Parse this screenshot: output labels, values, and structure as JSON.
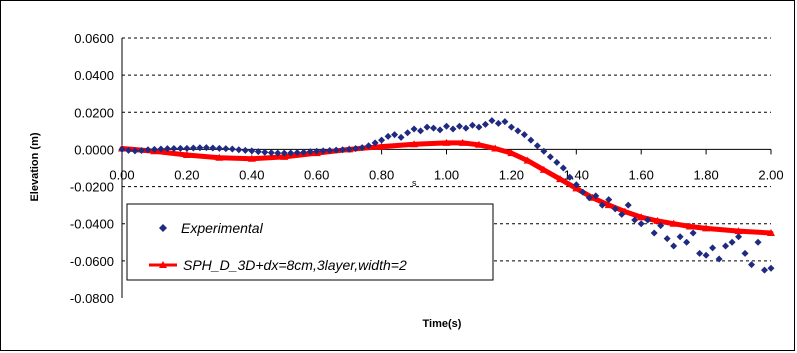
{
  "chart_data": {
    "type": "scatter",
    "title": "",
    "xlabel": "Time(s)",
    "ylabel": "Elevation (m)",
    "xlim": [
      0,
      2
    ],
    "ylim": [
      -0.08,
      0.06
    ],
    "x_ticks": [
      "0.00",
      "0.20",
      "0.40",
      "0.60",
      "0.80",
      "1.00",
      "1.20",
      "1.40",
      "1.60",
      "1.80",
      "2.00"
    ],
    "y_ticks": [
      "0.0600",
      "0.0400",
      "0.0200",
      "0.0000",
      "-0.0200",
      "-0.0400",
      "-0.0600",
      "-0.0800"
    ],
    "grid": "horizontal dashed",
    "legend_position": "bottom-left",
    "stray_mark": "s",
    "series": [
      {
        "name": "Experimental",
        "marker": "diamond",
        "color": "#1f2a80",
        "x": [
          0.0,
          0.02,
          0.04,
          0.06,
          0.08,
          0.1,
          0.12,
          0.14,
          0.16,
          0.18,
          0.2,
          0.22,
          0.24,
          0.26,
          0.28,
          0.3,
          0.32,
          0.34,
          0.36,
          0.38,
          0.4,
          0.42,
          0.44,
          0.46,
          0.48,
          0.5,
          0.52,
          0.54,
          0.56,
          0.58,
          0.6,
          0.62,
          0.64,
          0.66,
          0.68,
          0.7,
          0.72,
          0.74,
          0.76,
          0.78,
          0.8,
          0.82,
          0.84,
          0.86,
          0.88,
          0.9,
          0.92,
          0.94,
          0.96,
          0.98,
          1.0,
          1.02,
          1.04,
          1.06,
          1.08,
          1.1,
          1.12,
          1.14,
          1.16,
          1.18,
          1.2,
          1.22,
          1.24,
          1.26,
          1.28,
          1.3,
          1.32,
          1.34,
          1.36,
          1.38,
          1.4,
          1.42,
          1.44,
          1.46,
          1.48,
          1.5,
          1.52,
          1.54,
          1.56,
          1.58,
          1.6,
          1.62,
          1.64,
          1.66,
          1.68,
          1.7,
          1.72,
          1.74,
          1.76,
          1.78,
          1.8,
          1.82,
          1.84,
          1.86,
          1.88,
          1.9,
          1.92,
          1.94,
          1.96,
          1.98,
          2.0
        ],
        "y": [
          0.0,
          -0.0005,
          -0.0008,
          -0.0006,
          -0.0002,
          0.0,
          0.0002,
          0.0004,
          0.0005,
          0.0006,
          0.0006,
          0.0008,
          0.0009,
          0.001,
          0.0008,
          0.0006,
          0.0004,
          0.0002,
          -0.0002,
          -0.0005,
          -0.0008,
          -0.0012,
          -0.0015,
          -0.0018,
          -0.002,
          -0.002,
          -0.0019,
          -0.0017,
          -0.0015,
          -0.0012,
          -0.001,
          -0.0008,
          -0.0006,
          -0.0004,
          -0.0002,
          0.0,
          0.0005,
          0.001,
          0.002,
          0.0035,
          0.005,
          0.007,
          0.008,
          0.0065,
          0.009,
          0.011,
          0.01,
          0.012,
          0.0115,
          0.0105,
          0.0125,
          0.011,
          0.0125,
          0.0115,
          0.013,
          0.012,
          0.0135,
          0.0155,
          0.014,
          0.015,
          0.012,
          0.01,
          0.008,
          0.005,
          0.002,
          -0.001,
          -0.004,
          -0.007,
          -0.01,
          -0.015,
          -0.019,
          -0.023,
          -0.026,
          -0.025,
          -0.03,
          -0.027,
          -0.032,
          -0.035,
          -0.03,
          -0.038,
          -0.04,
          -0.038,
          -0.045,
          -0.041,
          -0.048,
          -0.052,
          -0.047,
          -0.05,
          -0.045,
          -0.056,
          -0.057,
          -0.053,
          -0.059,
          -0.052,
          -0.05,
          -0.047,
          -0.056,
          -0.062,
          -0.05,
          -0.065,
          -0.064
        ]
      },
      {
        "name": "SPH_D_3D+dx=8cm,3layer,width=2",
        "marker": "triangle",
        "color": "#ff0000",
        "x": [
          0.0,
          0.1,
          0.2,
          0.3,
          0.4,
          0.5,
          0.6,
          0.7,
          0.8,
          0.9,
          1.0,
          1.05,
          1.1,
          1.15,
          1.2,
          1.25,
          1.3,
          1.35,
          1.4,
          1.45,
          1.5,
          1.55,
          1.6,
          1.65,
          1.7,
          1.75,
          1.8,
          1.9,
          2.0
        ],
        "y": [
          0.0005,
          -0.001,
          -0.003,
          -0.0045,
          -0.005,
          -0.004,
          -0.002,
          0.0,
          0.0015,
          0.0028,
          0.0035,
          0.0035,
          0.0025,
          0.0005,
          -0.002,
          -0.006,
          -0.011,
          -0.016,
          -0.021,
          -0.026,
          -0.03,
          -0.0335,
          -0.0365,
          -0.0385,
          -0.04,
          -0.0415,
          -0.0425,
          -0.044,
          -0.045
        ]
      }
    ]
  }
}
